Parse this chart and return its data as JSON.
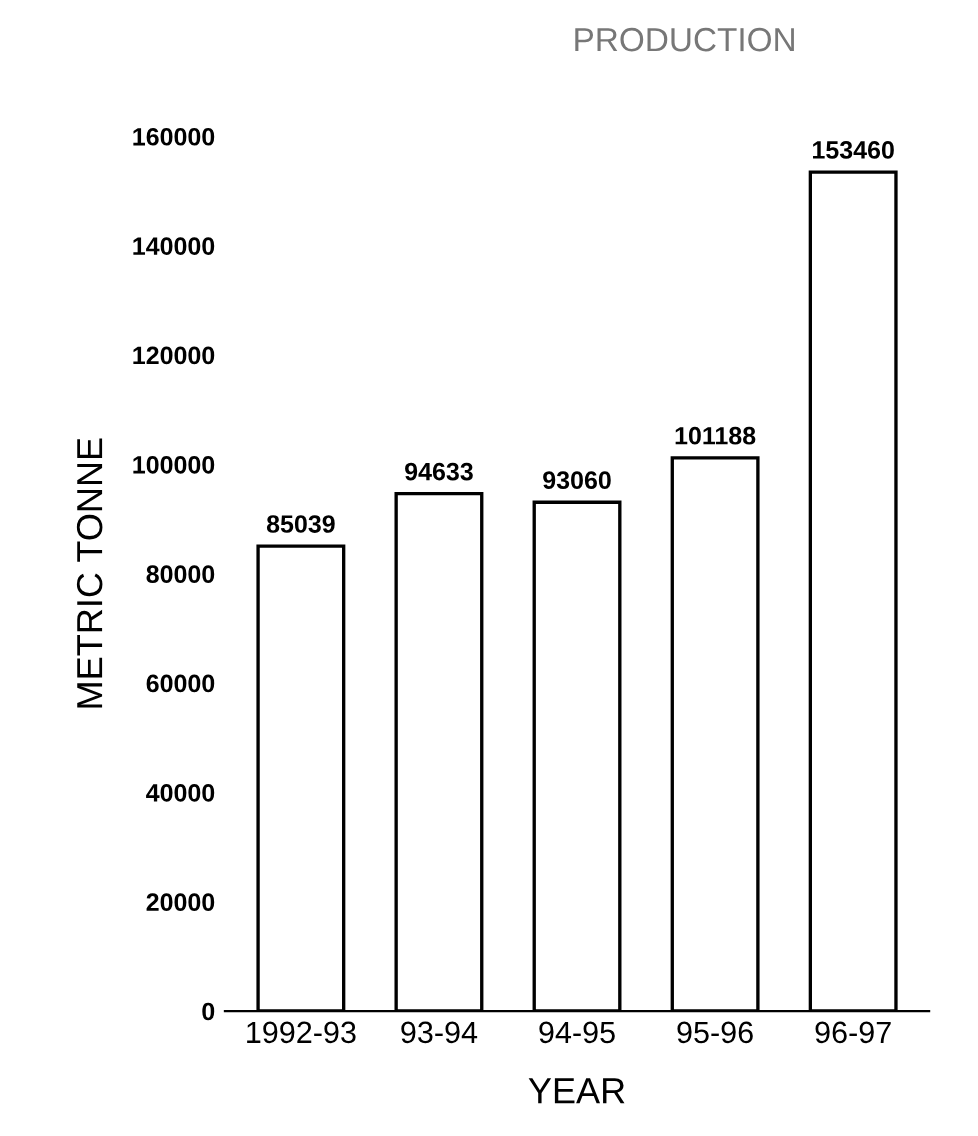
{
  "chart_data": {
    "type": "bar",
    "title": "PRODUCTION",
    "xlabel": "YEAR",
    "ylabel": "METRIC TONNE",
    "categories": [
      "1992-93",
      "93-94",
      "94-95",
      "95-96",
      "96-97"
    ],
    "values": [
      85039,
      94633,
      93060,
      101188,
      153460
    ],
    "color": "#ffffff",
    "ylim": [
      0,
      160000
    ],
    "yticks": [
      0,
      20000,
      40000,
      60000,
      80000,
      100000,
      120000,
      140000,
      160000
    ],
    "data_labels": true,
    "grid": false,
    "legend": false
  }
}
